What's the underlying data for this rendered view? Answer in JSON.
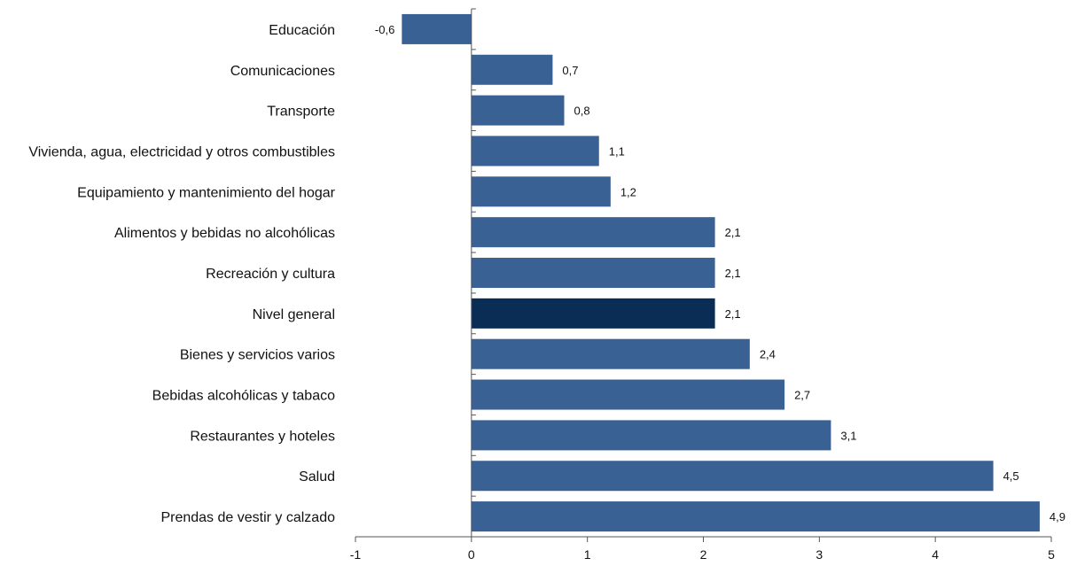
{
  "chart_data": {
    "type": "bar",
    "orientation": "horizontal",
    "title": "",
    "xlabel": "",
    "ylabel": "",
    "categories": [
      "Educación",
      "Comunicaciones",
      "Transporte",
      "Vivienda, agua, electricidad y otros combustibles",
      "Equipamiento y mantenimiento del hogar",
      "Alimentos y bebidas no alcohólicas",
      "Recreación y cultura",
      "Nivel general",
      "Bienes y servicios varios",
      "Bebidas alcohólicas y tabaco",
      "Restaurantes y hoteles",
      "Salud",
      "Prendas de vestir y calzado"
    ],
    "values": [
      -0.6,
      0.7,
      0.8,
      1.1,
      1.2,
      2.1,
      2.1,
      2.1,
      2.4,
      2.7,
      3.1,
      4.5,
      4.9
    ],
    "value_labels": [
      "-0,6",
      "0,7",
      "0,8",
      "1,1",
      "1,2",
      "2,1",
      "2,1",
      "2,1",
      "2,4",
      "2,7",
      "3,1",
      "4,5",
      "4,9"
    ],
    "xlim": [
      -1,
      5
    ],
    "x_ticks": [
      -1,
      0,
      1,
      2,
      3,
      4,
      5
    ],
    "x_tick_labels": [
      "-1",
      "0",
      "1",
      "2",
      "3",
      "4",
      "5"
    ],
    "grid": false,
    "legend": "none",
    "bar_color": "#3a6194",
    "highlight_color": "#0a2d55",
    "highlight_category": "Nivel general"
  }
}
